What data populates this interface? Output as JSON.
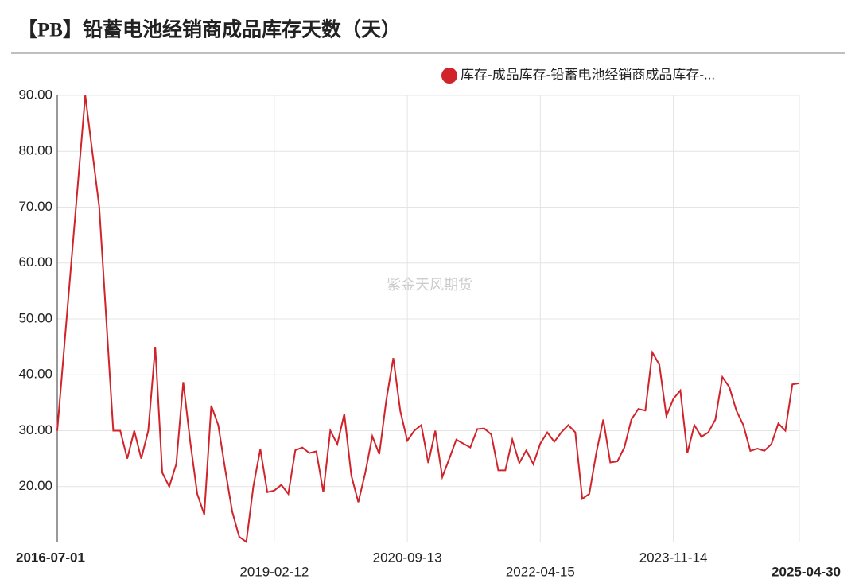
{
  "chart_data": {
    "type": "line",
    "title": "【PB】铅蓄电池经销商成品库存天数（天）",
    "watermark": "紫金天风期货",
    "categories": [
      "2016-07-01",
      null,
      null,
      null,
      null,
      null,
      null,
      null,
      null,
      null,
      null,
      null,
      null,
      null,
      null,
      null,
      null,
      null,
      null,
      null,
      null,
      null,
      null,
      null,
      null,
      null,
      null,
      null,
      null,
      null,
      null,
      "2019-02-12",
      null,
      null,
      null,
      null,
      null,
      null,
      null,
      null,
      null,
      null,
      null,
      null,
      null,
      null,
      null,
      null,
      null,
      null,
      "2020-09-13",
      null,
      null,
      null,
      null,
      null,
      null,
      null,
      null,
      null,
      null,
      null,
      null,
      null,
      null,
      null,
      null,
      null,
      null,
      "2022-04-15",
      null,
      null,
      null,
      null,
      null,
      null,
      null,
      null,
      null,
      null,
      null,
      null,
      null,
      null,
      null,
      null,
      null,
      null,
      "2023-11-14",
      null,
      null,
      null,
      null,
      null,
      null,
      null,
      null,
      null,
      null,
      null,
      null,
      null,
      null,
      null,
      null,
      null,
      "2025-04-30"
    ],
    "series": [
      {
        "name": "库存-成品库存-铅蓄电池经销商成品库存-...",
        "color": "#d0232a",
        "values": [
          30,
          45,
          60,
          75,
          90,
          80,
          70,
          50,
          30,
          30,
          25,
          30,
          25,
          30,
          45,
          22.5,
          20,
          24,
          38.7,
          28,
          18.7,
          15,
          34.5,
          31,
          23,
          15.5,
          11,
          10.1,
          20,
          26.7,
          19,
          19.3,
          20.3,
          18.7,
          26.5,
          27,
          26,
          26.3,
          19,
          30,
          27.6,
          33,
          22,
          17.2,
          22.5,
          29,
          25.8,
          35.5,
          43,
          33.5,
          28.2,
          30,
          31,
          24.2,
          30,
          21.7,
          25,
          28.4,
          27.7,
          27,
          30.3,
          30.4,
          29.3,
          22.9,
          22.9,
          28.4,
          24.2,
          26.5,
          24,
          27.7,
          29.7,
          28,
          29.7,
          31,
          29.7,
          17.8,
          18.7,
          26,
          32,
          24.3,
          24.5,
          27,
          32,
          33.9,
          33.6,
          44,
          41.8,
          32.6,
          35.7,
          37.2,
          26,
          31,
          28.9,
          29.7,
          32,
          39.6,
          37.8,
          33.6,
          31,
          26.4,
          26.8,
          26.4,
          27.6,
          31.3,
          30,
          38.3,
          38.5
        ]
      }
    ],
    "ylim": [
      10,
      90
    ],
    "yticks": [
      {
        "value": 20,
        "label": "20.00"
      },
      {
        "value": 30,
        "label": "30.00"
      },
      {
        "value": 40,
        "label": "40.00"
      },
      {
        "value": 50,
        "label": "50.00"
      },
      {
        "value": 60,
        "label": "60.00"
      },
      {
        "value": 70,
        "label": "70.00"
      },
      {
        "value": 80,
        "label": "80.00"
      },
      {
        "value": 90,
        "label": "90.00"
      }
    ],
    "grid": true,
    "legend": "top-right"
  }
}
